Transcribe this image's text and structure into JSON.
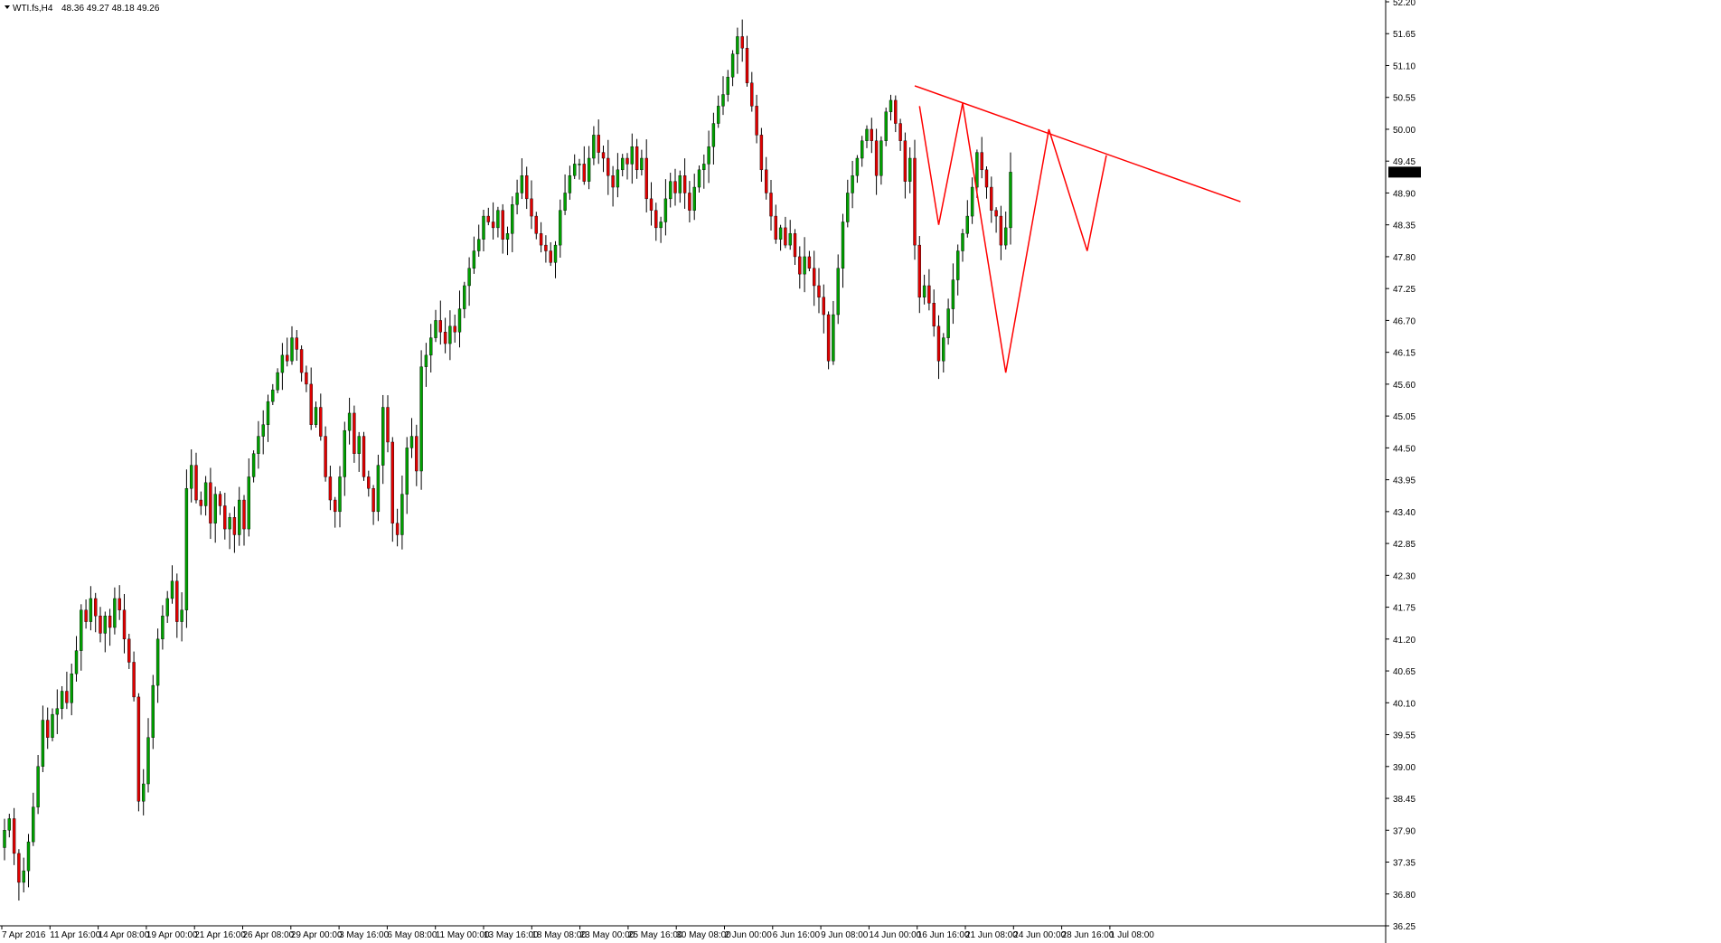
{
  "header": {
    "symbol_label": "WTI.fs,H4",
    "ohlc": "48.36 49.27 48.18 49.26"
  },
  "colors": {
    "bull": "#00a000",
    "bear": "#e00000",
    "wick": "#000000",
    "trend": "#ff0000",
    "axis": "#000000",
    "price_tag_bg": "#000000",
    "price_tag_fg": "#ffffff"
  },
  "chart_data": {
    "type": "candlestick",
    "symbol": "WTI.fs",
    "timeframe": "H4",
    "ylim": [
      36.25,
      52.2
    ],
    "y_ticks": [
      52.2,
      51.65,
      51.1,
      50.55,
      50.0,
      49.45,
      48.9,
      48.35,
      47.8,
      47.25,
      46.7,
      46.15,
      45.6,
      45.05,
      44.5,
      43.95,
      43.4,
      42.85,
      42.3,
      41.75,
      41.2,
      40.65,
      40.1,
      39.55,
      39.0,
      38.45,
      37.9,
      37.35,
      36.8,
      36.25
    ],
    "x_tick_labels": [
      "7 Apr 2016",
      "11 Apr 16:00",
      "14 Apr 08:00",
      "19 Apr 00:00",
      "21 Apr 16:00",
      "26 Apr 08:00",
      "29 Apr 00:00",
      "3 May 16:00",
      "6 May 08:00",
      "11 May 00:00",
      "13 May 16:00",
      "18 May 08:00",
      "23 May 00:00",
      "25 May 16:00",
      "30 May 08:00",
      "2 Jun 00:00",
      "6 Jun 16:00",
      "9 Jun 08:00",
      "14 Jun 00:00",
      "16 Jun 16:00",
      "21 Jun 08:00",
      "24 Jun 00:00",
      "28 Jun 16:00",
      "1 Jul 08:00"
    ],
    "last_price": "49.26",
    "closes": [
      37.9,
      38.1,
      37.5,
      37.0,
      37.2,
      37.7,
      38.3,
      39.0,
      39.8,
      39.5,
      39.9,
      40.0,
      40.3,
      40.1,
      40.6,
      41.0,
      41.7,
      41.5,
      41.9,
      41.6,
      41.3,
      41.6,
      41.4,
      41.9,
      41.7,
      41.2,
      40.8,
      40.2,
      38.4,
      38.7,
      39.5,
      40.4,
      41.2,
      41.6,
      41.9,
      42.2,
      41.5,
      41.7,
      43.8,
      44.2,
      43.6,
      43.5,
      43.9,
      43.2,
      43.7,
      43.5,
      43.1,
      43.3,
      43.0,
      43.6,
      43.1,
      44.0,
      44.4,
      44.7,
      44.9,
      45.3,
      45.5,
      45.8,
      46.1,
      46.0,
      46.4,
      46.2,
      45.8,
      45.6,
      44.9,
      45.2,
      44.7,
      44.0,
      43.6,
      43.4,
      44.0,
      44.8,
      45.1,
      44.4,
      44.7,
      44.0,
      43.8,
      43.4,
      44.2,
      45.2,
      44.6,
      43.2,
      43.0,
      43.7,
      44.5,
      44.7,
      44.1,
      45.9,
      46.1,
      46.4,
      46.7,
      46.5,
      46.3,
      46.6,
      46.5,
      46.9,
      47.3,
      47.6,
      47.9,
      48.1,
      48.5,
      48.4,
      48.3,
      48.6,
      48.1,
      48.2,
      48.7,
      48.9,
      49.2,
      48.8,
      48.5,
      48.2,
      48.0,
      47.9,
      47.7,
      48.0,
      48.6,
      48.9,
      49.2,
      49.4,
      49.4,
      49.1,
      49.5,
      49.9,
      49.6,
      49.5,
      49.2,
      49.0,
      49.3,
      49.5,
      49.4,
      49.7,
      49.3,
      49.5,
      48.8,
      48.6,
      48.3,
      48.4,
      48.8,
      49.1,
      48.9,
      49.2,
      48.9,
      48.6,
      49.0,
      49.3,
      49.4,
      49.7,
      50.1,
      50.4,
      50.6,
      50.9,
      51.3,
      51.6,
      51.4,
      50.8,
      50.4,
      49.9,
      49.3,
      48.9,
      48.5,
      48.1,
      48.3,
      48.0,
      48.2,
      47.8,
      47.5,
      47.8,
      47.6,
      47.3,
      47.1,
      46.8,
      46.0,
      46.8,
      47.6,
      48.4,
      48.9,
      49.2,
      49.5,
      49.8,
      50.0,
      49.8,
      49.2,
      49.8,
      50.3,
      50.5,
      50.1,
      49.8,
      49.1,
      49.5,
      48.0,
      47.1,
      47.3,
      47.0,
      46.6,
      46.0,
      46.4,
      46.9,
      47.4,
      47.9,
      48.2,
      48.5,
      49.0,
      49.6,
      49.3,
      49.0,
      48.6,
      48.5,
      48.0,
      48.3,
      49.26
    ]
  },
  "trendline": {
    "from_index": 190,
    "from_price": 50.75,
    "to_index": 258,
    "to_price": 48.75
  },
  "pattern": [
    {
      "index": 191,
      "price": 50.4
    },
    {
      "index": 195,
      "price": 48.35
    },
    {
      "index": 200,
      "price": 50.45
    },
    {
      "index": 209,
      "price": 45.8
    },
    {
      "index": 218,
      "price": 50.0
    },
    {
      "index": 226,
      "price": 47.9
    },
    {
      "index": 230,
      "price": 49.55
    }
  ]
}
